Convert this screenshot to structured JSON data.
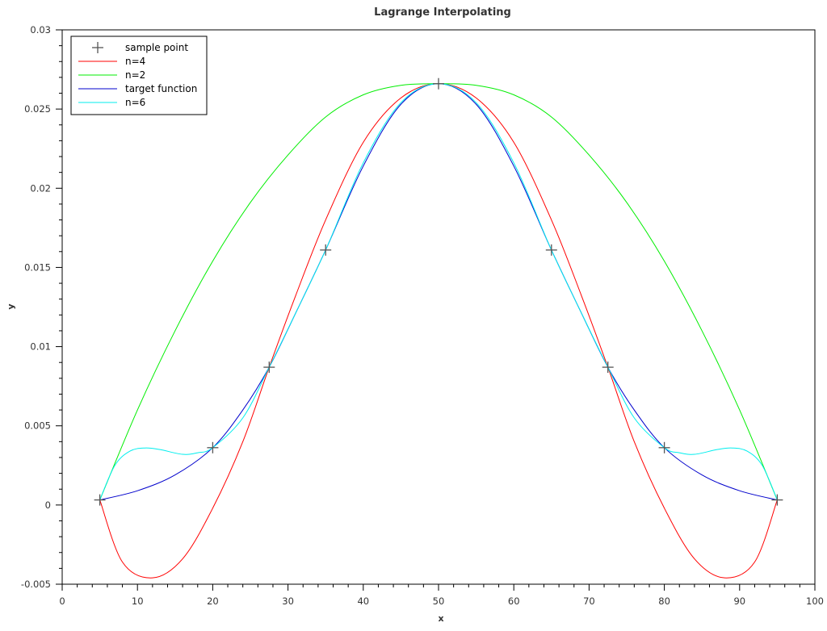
{
  "chart_data": {
    "type": "line",
    "title": "Lagrange Interpolating",
    "xlabel": "x",
    "ylabel": "y",
    "xlim": [
      0,
      100
    ],
    "ylim": [
      -0.005,
      0.03
    ],
    "x_ticks": [
      "0",
      "10",
      "20",
      "30",
      "40",
      "50",
      "60",
      "70",
      "80",
      "90",
      "100"
    ],
    "y_ticks": [
      "-0.005",
      "0",
      "0.005",
      "0.01",
      "0.015",
      "0.02",
      "0.025",
      "0.03"
    ],
    "grid": false,
    "legend_position": "top-left",
    "sample_points": {
      "name": "sample point",
      "color": "#555555",
      "x": [
        5,
        20,
        27.5,
        35,
        50,
        65,
        72.5,
        80,
        95
      ],
      "y": [
        0.00032,
        0.00362,
        0.0087,
        0.0161,
        0.0266,
        0.0161,
        0.0087,
        0.00362,
        0.00032
      ]
    },
    "series": [
      {
        "name": "n=4",
        "color": "#ff0000",
        "x": [
          5,
          8,
          12,
          16,
          20,
          24,
          27.5,
          31,
          35,
          40,
          45,
          50,
          55,
          60,
          65,
          69,
          72.5,
          76,
          80,
          84,
          88,
          92,
          95
        ],
        "y": [
          0.00032,
          -0.0036,
          -0.0046,
          -0.0034,
          -0.0002,
          0.004,
          0.0087,
          0.0132,
          0.018,
          0.0229,
          0.0257,
          0.0266,
          0.0257,
          0.0229,
          0.018,
          0.0132,
          0.0087,
          0.004,
          -0.0002,
          -0.0034,
          -0.0046,
          -0.0036,
          0.00032
        ]
      },
      {
        "name": "n=2",
        "color": "#00ee00",
        "x": [
          5,
          10,
          15,
          20,
          25,
          30,
          35,
          40,
          45,
          50,
          55,
          60,
          65,
          70,
          75,
          80,
          85,
          90,
          95
        ],
        "y": [
          0.00032,
          0.006,
          0.011,
          0.0154,
          0.0191,
          0.0221,
          0.0245,
          0.0259,
          0.0265,
          0.0266,
          0.0265,
          0.0259,
          0.0245,
          0.0221,
          0.0191,
          0.0154,
          0.011,
          0.006,
          0.00032
        ]
      },
      {
        "name": "target function",
        "color": "#0000cc",
        "x": [
          5,
          10,
          15,
          20,
          24,
          27.5,
          31,
          35,
          40,
          45,
          50,
          55,
          60,
          65,
          69,
          72.5,
          76,
          80,
          85,
          90,
          95
        ],
        "y": [
          0.00032,
          0.0009,
          0.0019,
          0.00362,
          0.006,
          0.0087,
          0.0121,
          0.0161,
          0.0214,
          0.0253,
          0.0266,
          0.0253,
          0.0214,
          0.0161,
          0.0121,
          0.0087,
          0.006,
          0.00362,
          0.0019,
          0.0009,
          0.00032
        ]
      },
      {
        "name": "n=6",
        "color": "#00eeee",
        "x": [
          5,
          7,
          9,
          11,
          13,
          16,
          18,
          20,
          24,
          27.5,
          31,
          35,
          40,
          45,
          50,
          55,
          60,
          65,
          69,
          72.5,
          76,
          80,
          82,
          84,
          87,
          89,
          91,
          93,
          95
        ],
        "y": [
          0.00032,
          0.0025,
          0.0034,
          0.0036,
          0.0035,
          0.0032,
          0.0033,
          0.00362,
          0.0055,
          0.0087,
          0.0121,
          0.0161,
          0.0216,
          0.0254,
          0.0266,
          0.0254,
          0.0216,
          0.0161,
          0.0121,
          0.0087,
          0.0055,
          0.00362,
          0.0033,
          0.0032,
          0.0035,
          0.0036,
          0.0034,
          0.0025,
          0.00032
        ]
      }
    ]
  }
}
